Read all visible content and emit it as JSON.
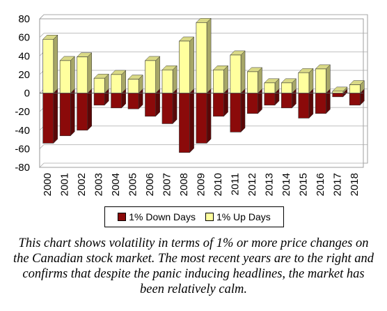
{
  "chart_data": {
    "type": "bar",
    "categories": [
      "2000",
      "2001",
      "2002",
      "2003",
      "2004",
      "2005",
      "2006",
      "2007",
      "2008",
      "2009",
      "2010",
      "2011",
      "2012",
      "2013",
      "2014",
      "2015",
      "2016",
      "2017",
      "2018"
    ],
    "series": [
      {
        "name": "1% Down Days",
        "color": "#8b0a0a",
        "values": [
          -54,
          -46,
          -40,
          -13,
          -16,
          -17,
          -25,
          -33,
          -64,
          -54,
          -25,
          -42,
          -22,
          -13,
          -16,
          -27,
          -22,
          -4,
          -13
        ]
      },
      {
        "name": "1% Up Days",
        "color": "#ffff9e",
        "values": [
          58,
          35,
          39,
          16,
          20,
          15,
          35,
          25,
          56,
          76,
          25,
          41,
          23,
          11,
          11,
          22,
          26,
          2,
          9
        ]
      }
    ],
    "ylim": [
      -80,
      80
    ],
    "yticks": [
      80,
      60,
      40,
      20,
      0,
      -20,
      -40,
      -60,
      -80
    ],
    "grid": true,
    "legend_position": "bottom",
    "style": "3d-stacked-bar"
  },
  "caption": "This chart shows volatility in terms of 1% or more price changes on the Canadian stock market. The most recent years are to the right and confirms that despite the panic inducing headlines, the market has been relatively calm."
}
